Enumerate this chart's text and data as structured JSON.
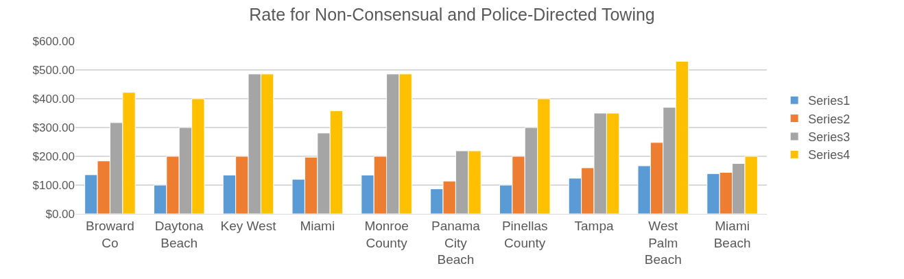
{
  "chart_data": {
    "type": "bar",
    "title": "Rate for Non-Consensual and Police-Directed Towing",
    "categories": [
      "Broward Co",
      "Daytona Beach",
      "Key West",
      "Miami",
      "Monroe County",
      "Panama City Beach",
      "Pinellas County",
      "Tampa",
      "West Palm Beach",
      "Miami Beach"
    ],
    "series": [
      {
        "name": "Series1",
        "color": "#5b9bd5",
        "values": [
          136,
          100,
          135,
          120,
          135,
          87,
          100,
          124,
          167,
          140
        ]
      },
      {
        "name": "Series2",
        "color": "#ed7d31",
        "values": [
          184,
          200,
          200,
          197,
          200,
          114,
          200,
          160,
          248,
          144
        ]
      },
      {
        "name": "Series3",
        "color": "#a5a5a5",
        "values": [
          317,
          300,
          486,
          281,
          486,
          219,
          300,
          350,
          370,
          175
        ]
      },
      {
        "name": "Series4",
        "color": "#ffc000",
        "values": [
          422,
          400,
          486,
          358,
          486,
          219,
          400,
          350,
          530,
          200
        ]
      }
    ],
    "ylim": [
      0,
      600
    ],
    "yticks": [
      {
        "value": 0,
        "label": "$0.00"
      },
      {
        "value": 100,
        "label": "$100.00"
      },
      {
        "value": 200,
        "label": "$200.00"
      },
      {
        "value": 300,
        "label": "$300.00"
      },
      {
        "value": 400,
        "label": "$400.00"
      },
      {
        "value": 500,
        "label": "$500.00"
      },
      {
        "value": 600,
        "label": "$600.00"
      }
    ],
    "grid": "y",
    "legend": "right"
  }
}
